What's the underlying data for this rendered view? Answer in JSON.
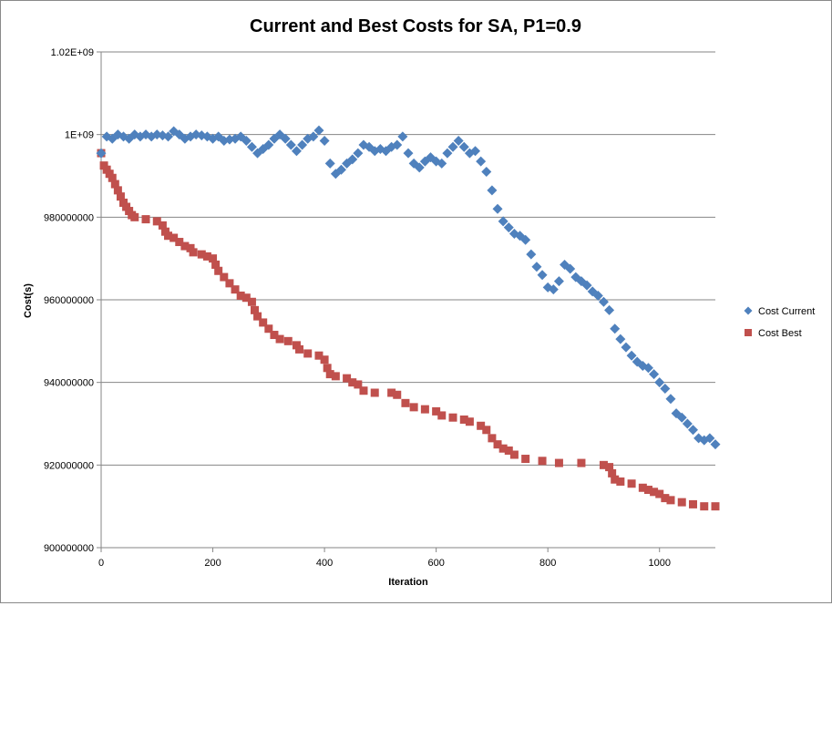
{
  "chart_data": {
    "type": "scatter",
    "title": "Current and Best Costs for SA, P1=0.9",
    "xlabel": "Iteration",
    "ylabel": "Cost(s)",
    "xlim": [
      0,
      1100
    ],
    "ylim": [
      900000000,
      1020000000
    ],
    "x_ticks": [
      0,
      200,
      400,
      600,
      800,
      1000
    ],
    "x_tick_labels": [
      "0",
      "200",
      "400",
      "600",
      "800",
      "1000"
    ],
    "y_ticks": [
      900000000,
      920000000,
      940000000,
      960000000,
      980000000,
      1000000000,
      1020000000
    ],
    "y_tick_labels": [
      "900000000",
      "920000000",
      "940000000",
      "960000000",
      "980000000",
      "1E+09",
      "1.02E+09"
    ],
    "grid": true,
    "legend_position": "right",
    "series": [
      {
        "name": "Cost Current",
        "color": "#4f81bd",
        "marker": "diamond",
        "points": [
          [
            0,
            995500000
          ],
          [
            10,
            999500000
          ],
          [
            20,
            999000000
          ],
          [
            30,
            1000000000
          ],
          [
            40,
            999500000
          ],
          [
            50,
            999000000
          ],
          [
            60,
            1000000000
          ],
          [
            70,
            999500000
          ],
          [
            80,
            1000000000
          ],
          [
            90,
            999500000
          ],
          [
            100,
            1000000000
          ],
          [
            110,
            999800000
          ],
          [
            120,
            999500000
          ],
          [
            130,
            1000800000
          ],
          [
            140,
            1000000000
          ],
          [
            150,
            999000000
          ],
          [
            160,
            999500000
          ],
          [
            170,
            1000000000
          ],
          [
            180,
            999800000
          ],
          [
            190,
            999500000
          ],
          [
            200,
            999000000
          ],
          [
            210,
            999500000
          ],
          [
            220,
            998500000
          ],
          [
            230,
            998800000
          ],
          [
            240,
            999000000
          ],
          [
            250,
            999500000
          ],
          [
            260,
            998500000
          ],
          [
            270,
            997000000
          ],
          [
            280,
            995500000
          ],
          [
            290,
            996500000
          ],
          [
            300,
            997500000
          ],
          [
            310,
            999000000
          ],
          [
            320,
            1000000000
          ],
          [
            330,
            999000000
          ],
          [
            340,
            997500000
          ],
          [
            350,
            996000000
          ],
          [
            360,
            997500000
          ],
          [
            370,
            999000000
          ],
          [
            380,
            999500000
          ],
          [
            390,
            1001000000
          ],
          [
            400,
            998500000
          ],
          [
            410,
            993000000
          ],
          [
            420,
            990500000
          ],
          [
            430,
            991500000
          ],
          [
            440,
            993000000
          ],
          [
            450,
            994000000
          ],
          [
            460,
            995500000
          ],
          [
            470,
            997500000
          ],
          [
            480,
            997000000
          ],
          [
            490,
            996000000
          ],
          [
            500,
            996500000
          ],
          [
            510,
            996000000
          ],
          [
            520,
            997000000
          ],
          [
            530,
            997500000
          ],
          [
            540,
            999500000
          ],
          [
            550,
            995500000
          ],
          [
            560,
            993000000
          ],
          [
            570,
            992000000
          ],
          [
            580,
            993500000
          ],
          [
            590,
            994500000
          ],
          [
            600,
            993500000
          ],
          [
            610,
            993000000
          ],
          [
            620,
            995500000
          ],
          [
            630,
            997000000
          ],
          [
            640,
            998500000
          ],
          [
            650,
            997000000
          ],
          [
            660,
            995500000
          ],
          [
            670,
            996000000
          ],
          [
            680,
            993500000
          ],
          [
            690,
            991000000
          ],
          [
            700,
            986500000
          ],
          [
            710,
            982000000
          ],
          [
            720,
            979000000
          ],
          [
            730,
            977500000
          ],
          [
            740,
            976000000
          ],
          [
            750,
            975500000
          ],
          [
            760,
            974500000
          ],
          [
            770,
            971000000
          ],
          [
            780,
            968000000
          ],
          [
            790,
            966000000
          ],
          [
            800,
            963000000
          ],
          [
            810,
            962500000
          ],
          [
            820,
            964500000
          ],
          [
            830,
            968500000
          ],
          [
            840,
            967500000
          ],
          [
            850,
            965500000
          ],
          [
            860,
            964500000
          ],
          [
            870,
            963500000
          ],
          [
            880,
            962000000
          ],
          [
            890,
            961000000
          ],
          [
            900,
            959500000
          ],
          [
            910,
            957500000
          ],
          [
            920,
            953000000
          ],
          [
            930,
            950500000
          ],
          [
            940,
            948500000
          ],
          [
            950,
            946500000
          ],
          [
            960,
            945000000
          ],
          [
            970,
            944000000
          ],
          [
            980,
            943500000
          ],
          [
            990,
            942000000
          ],
          [
            1000,
            940000000
          ],
          [
            1010,
            938500000
          ],
          [
            1020,
            936000000
          ],
          [
            1030,
            932500000
          ],
          [
            1040,
            931500000
          ],
          [
            1050,
            930000000
          ],
          [
            1060,
            928500000
          ],
          [
            1070,
            926500000
          ],
          [
            1080,
            926000000
          ],
          [
            1090,
            926500000
          ],
          [
            1100,
            925000000
          ]
        ]
      },
      {
        "name": "Cost Best",
        "color": "#c0504d",
        "marker": "square",
        "points": [
          [
            0,
            995500000
          ],
          [
            5,
            992500000
          ],
          [
            10,
            991500000
          ],
          [
            15,
            990500000
          ],
          [
            20,
            989500000
          ],
          [
            25,
            988000000
          ],
          [
            30,
            986500000
          ],
          [
            35,
            985000000
          ],
          [
            40,
            983500000
          ],
          [
            45,
            982500000
          ],
          [
            50,
            981500000
          ],
          [
            55,
            980500000
          ],
          [
            60,
            980000000
          ],
          [
            80,
            979500000
          ],
          [
            100,
            979000000
          ],
          [
            110,
            978000000
          ],
          [
            115,
            976500000
          ],
          [
            120,
            975500000
          ],
          [
            130,
            975000000
          ],
          [
            140,
            974000000
          ],
          [
            150,
            973000000
          ],
          [
            160,
            972500000
          ],
          [
            165,
            971500000
          ],
          [
            180,
            971000000
          ],
          [
            190,
            970500000
          ],
          [
            200,
            970000000
          ],
          [
            205,
            968500000
          ],
          [
            210,
            967000000
          ],
          [
            220,
            965500000
          ],
          [
            230,
            964000000
          ],
          [
            240,
            962500000
          ],
          [
            250,
            961000000
          ],
          [
            260,
            960500000
          ],
          [
            270,
            959500000
          ],
          [
            275,
            957500000
          ],
          [
            280,
            956000000
          ],
          [
            290,
            954500000
          ],
          [
            300,
            953000000
          ],
          [
            310,
            951500000
          ],
          [
            320,
            950500000
          ],
          [
            335,
            950000000
          ],
          [
            350,
            949000000
          ],
          [
            355,
            948000000
          ],
          [
            370,
            947000000
          ],
          [
            390,
            946500000
          ],
          [
            400,
            945500000
          ],
          [
            405,
            943500000
          ],
          [
            410,
            942000000
          ],
          [
            420,
            941500000
          ],
          [
            440,
            941000000
          ],
          [
            450,
            940000000
          ],
          [
            460,
            939500000
          ],
          [
            470,
            938000000
          ],
          [
            490,
            937500000
          ],
          [
            520,
            937500000
          ],
          [
            530,
            937000000
          ],
          [
            545,
            935000000
          ],
          [
            560,
            934000000
          ],
          [
            580,
            933500000
          ],
          [
            600,
            933000000
          ],
          [
            610,
            932000000
          ],
          [
            630,
            931500000
          ],
          [
            650,
            931000000
          ],
          [
            660,
            930500000
          ],
          [
            680,
            929500000
          ],
          [
            690,
            928500000
          ],
          [
            700,
            926500000
          ],
          [
            710,
            925000000
          ],
          [
            720,
            924000000
          ],
          [
            730,
            923500000
          ],
          [
            740,
            922500000
          ],
          [
            760,
            921500000
          ],
          [
            790,
            921000000
          ],
          [
            820,
            920500000
          ],
          [
            860,
            920500000
          ],
          [
            900,
            920000000
          ],
          [
            910,
            919500000
          ],
          [
            915,
            918000000
          ],
          [
            920,
            916500000
          ],
          [
            930,
            916000000
          ],
          [
            950,
            915500000
          ],
          [
            970,
            914500000
          ],
          [
            980,
            914000000
          ],
          [
            990,
            913500000
          ],
          [
            1000,
            913000000
          ],
          [
            1010,
            912000000
          ],
          [
            1020,
            911500000
          ],
          [
            1040,
            911000000
          ],
          [
            1060,
            910500000
          ],
          [
            1080,
            910000000
          ],
          [
            1100,
            910000000
          ]
        ]
      }
    ]
  }
}
